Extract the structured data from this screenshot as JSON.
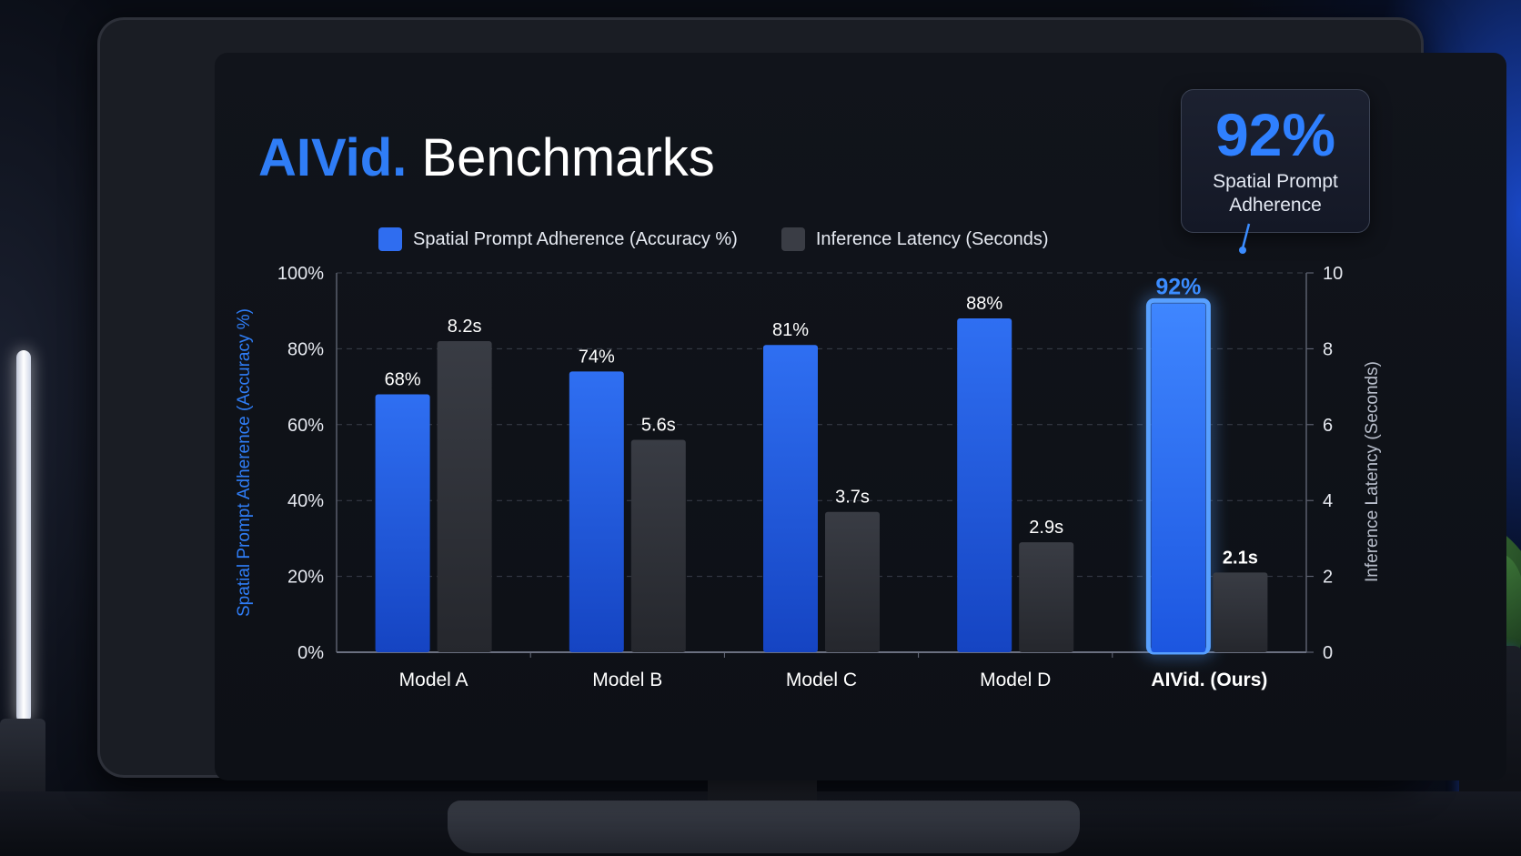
{
  "title": {
    "brand": "AIVid.",
    "rest": "Benchmarks"
  },
  "callout": {
    "value": "92%",
    "label": "Spatial Prompt Adherence"
  },
  "colors": {
    "accent": "#2f7df6",
    "accuracy_bar": "#1f5be0",
    "latency_bar": "#2f3137",
    "highlight_glow": "#3a8bff"
  },
  "chart_data": {
    "type": "bar",
    "categories": [
      "Model A",
      "Model B",
      "Model C",
      "Model D",
      "AIVid. (Ours)"
    ],
    "series": [
      {
        "name": "Spatial Prompt Adherence (Accuracy %)",
        "axis": "left",
        "values": [
          68,
          74,
          81,
          88,
          92
        ],
        "labels": [
          "68%",
          "74%",
          "81%",
          "88%",
          "92%"
        ]
      },
      {
        "name": "Inference Latency (Seconds)",
        "axis": "right",
        "values": [
          8.2,
          5.6,
          3.7,
          2.9,
          2.1
        ],
        "labels": [
          "8.2s",
          "5.6s",
          "3.7s",
          "2.9s",
          "2.1s"
        ]
      }
    ],
    "ylabel": "Spatial Prompt Adherence (Accuracy %)",
    "y2label": "Inference Latency (Seconds)",
    "ylim": [
      0,
      100
    ],
    "y2lim": [
      0,
      10
    ],
    "yticks": [
      "0%",
      "20%",
      "40%",
      "60%",
      "80%",
      "100%"
    ],
    "y2ticks": [
      "0",
      "2",
      "4",
      "6",
      "8",
      "10"
    ],
    "grid": true,
    "legend": "top",
    "highlight_category": "AIVid. (Ours)"
  }
}
